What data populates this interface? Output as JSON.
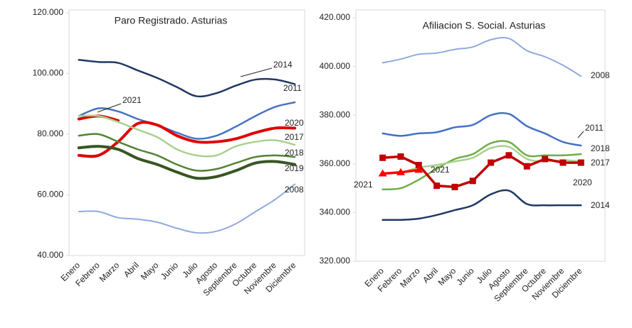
{
  "chart_data": [
    {
      "type": "line",
      "title": "Paro Registrado. Asturias",
      "categories": [
        "Enero",
        "Febrero",
        "Marzo",
        "Abril",
        "Mayo",
        "Junio",
        "Julio",
        "Agosto",
        "Septiembre",
        "Octubre",
        "Noviembre",
        "Diciembre"
      ],
      "ylim": [
        40000,
        120000
      ],
      "yticks": [
        {
          "value": 40000,
          "label": "40.000"
        },
        {
          "value": 60000,
          "label": "60.000"
        },
        {
          "value": 80000,
          "label": "80.000"
        },
        {
          "value": 100000,
          "label": "100.000"
        },
        {
          "value": 120000,
          "label": "120.000"
        }
      ],
      "series": [
        {
          "name": "2014",
          "color": "#203864",
          "width": 2.5,
          "values": [
            104500,
            103800,
            103500,
            101000,
            98500,
            95500,
            92500,
            93500,
            96000,
            98000,
            98000,
            96500
          ]
        },
        {
          "name": "2011",
          "color": "#4472c4",
          "width": 2.5,
          "values": [
            86000,
            88500,
            87500,
            85000,
            83000,
            80500,
            78500,
            79500,
            82500,
            86000,
            89000,
            90500
          ]
        },
        {
          "name": "2020",
          "color": "#e00000",
          "width": 4,
          "values": [
            73000,
            73000,
            77500,
            83500,
            83000,
            79500,
            77500,
            77500,
            78500,
            80500,
            82000,
            82000
          ]
        },
        {
          "name": "2021",
          "color": "#e00000",
          "width": 4,
          "values": [
            85000,
            86000,
            84500,
            null,
            null,
            null,
            null,
            null,
            null,
            null,
            null,
            null
          ]
        },
        {
          "name": "2017",
          "color": "#a9d18e",
          "width": 2.5,
          "values": [
            86000,
            86000,
            84000,
            81500,
            79000,
            75000,
            73000,
            73000,
            76000,
            77500,
            78000,
            76500
          ]
        },
        {
          "name": "2018",
          "color": "#548235",
          "width": 2.5,
          "values": [
            79500,
            80000,
            77500,
            75000,
            73000,
            70000,
            68000,
            68500,
            70500,
            72500,
            73000,
            72500
          ]
        },
        {
          "name": "2019",
          "color": "#375623",
          "width": 4,
          "values": [
            75500,
            76000,
            75000,
            72000,
            70000,
            67500,
            65500,
            66000,
            68000,
            70500,
            71000,
            70000
          ]
        },
        {
          "name": "2008",
          "color": "#8faadc",
          "width": 2,
          "values": [
            54500,
            54500,
            52500,
            52000,
            51000,
            49000,
            47500,
            48000,
            50500,
            54500,
            58500,
            63500
          ]
        }
      ]
    },
    {
      "type": "line",
      "title": "Afiliacion S. Social. Asturias",
      "categories": [
        "Enero",
        "Febrero",
        "Marzo",
        "Abril",
        "Mayo",
        "Junio",
        "Julio",
        "Agosto",
        "Septiembre",
        "Octubre",
        "Noviembre",
        "Diciembre"
      ],
      "ylim": [
        320000,
        420000
      ],
      "yticks": [
        {
          "value": 320000,
          "label": "320.000"
        },
        {
          "value": 340000,
          "label": "340.000"
        },
        {
          "value": 360000,
          "label": "360.000"
        },
        {
          "value": 380000,
          "label": "380.000"
        },
        {
          "value": 400000,
          "label": "400.000"
        },
        {
          "value": 420000,
          "label": "420.000"
        }
      ],
      "series": [
        {
          "name": "2008",
          "color": "#8faadc",
          "width": 2,
          "values": [
            401500,
            403000,
            405000,
            405500,
            407000,
            408000,
            411000,
            411500,
            406500,
            404000,
            400500,
            396000
          ]
        },
        {
          "name": "2011",
          "color": "#4472c4",
          "width": 2.5,
          "values": [
            372500,
            371500,
            372500,
            373000,
            375000,
            376000,
            380000,
            380500,
            375500,
            372500,
            369000,
            367500
          ]
        },
        {
          "name": "2018",
          "color": "#70ad47",
          "width": 2.5,
          "values": [
            349500,
            350000,
            353500,
            358000,
            362000,
            364000,
            368500,
            369000,
            363500,
            363500,
            363500,
            364000
          ]
        },
        {
          "name": "2017",
          "color": "#a9d18e",
          "width": 2.5,
          "values": [
            356000,
            356500,
            358500,
            359500,
            361000,
            362500,
            366500,
            367000,
            362000,
            361000,
            361500,
            361000
          ]
        },
        {
          "name": "2020",
          "color": "#c00000",
          "width": 3.5,
          "smooth": false,
          "marker": "square",
          "values": [
            362500,
            363000,
            359500,
            351000,
            350500,
            353000,
            360500,
            363500,
            359000,
            362000,
            360500,
            360500
          ]
        },
        {
          "name": "2021",
          "color": "#ff0000",
          "width": 3.5,
          "smooth": false,
          "marker": "triangle",
          "values": [
            356000,
            356500,
            357500,
            null,
            null,
            null,
            null,
            null,
            null,
            null,
            null,
            null
          ]
        },
        {
          "name": "2014",
          "color": "#203864",
          "width": 2.5,
          "values": [
            337000,
            337000,
            337500,
            339000,
            341000,
            343000,
            347500,
            349000,
            343500,
            343000,
            343000,
            343000
          ]
        }
      ]
    }
  ]
}
